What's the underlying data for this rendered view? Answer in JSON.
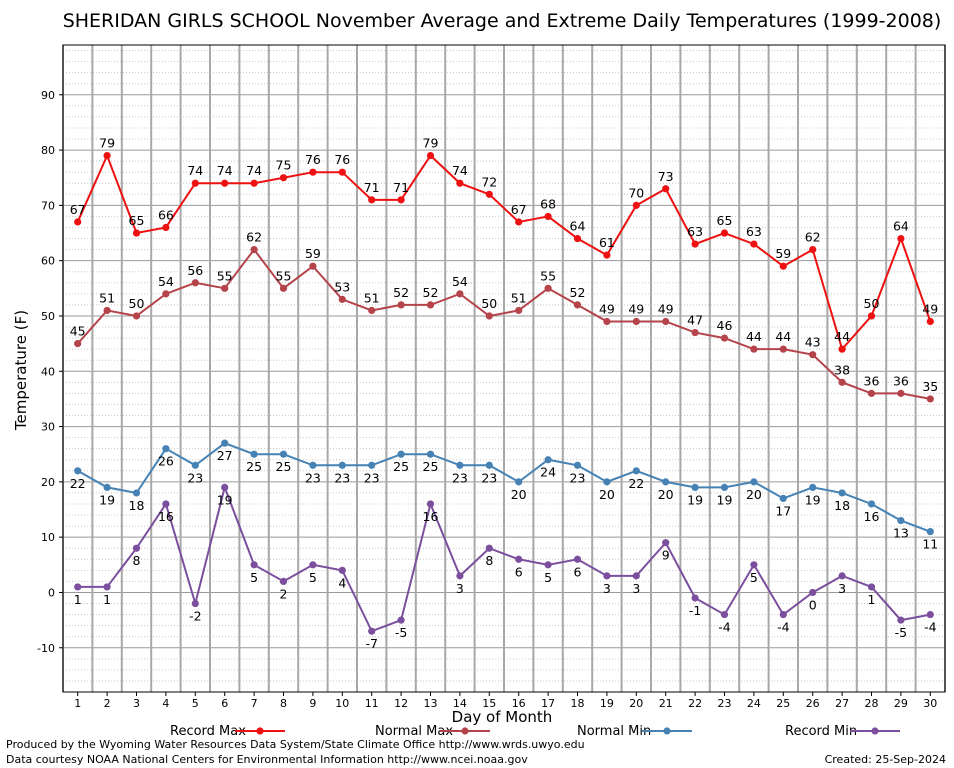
{
  "chart_data": {
    "type": "line",
    "title": "SHERIDAN GIRLS SCHOOL November Average and Extreme Daily Temperatures (1999-2008)",
    "xlabel": "Day of Month",
    "ylabel": "Temperature (F)",
    "x": [
      1,
      2,
      3,
      4,
      5,
      6,
      7,
      8,
      9,
      10,
      11,
      12,
      13,
      14,
      15,
      16,
      17,
      18,
      19,
      20,
      21,
      22,
      23,
      24,
      25,
      26,
      27,
      28,
      29,
      30
    ],
    "xlim": [
      0.5,
      30.5
    ],
    "ylim": [
      -18,
      99
    ],
    "yticks": [
      -10,
      0,
      10,
      20,
      30,
      40,
      50,
      60,
      70,
      80,
      90
    ],
    "grid": true,
    "legend_position": "bottom",
    "series": [
      {
        "name": "Record Max",
        "color": "#ee1111",
        "label_position": "above",
        "values": [
          67,
          79,
          65,
          66,
          74,
          74,
          74,
          75,
          76,
          76,
          71,
          71,
          79,
          74,
          72,
          67,
          68,
          64,
          61,
          70,
          73,
          63,
          65,
          63,
          59,
          62,
          44,
          50,
          64,
          49
        ]
      },
      {
        "name": "Normal Max",
        "color": "#b5434a",
        "label_position": "above",
        "values": [
          45,
          51,
          50,
          54,
          56,
          55,
          62,
          55,
          59,
          53,
          51,
          52,
          52,
          54,
          50,
          51,
          55,
          52,
          49,
          49,
          49,
          47,
          46,
          44,
          44,
          43,
          38,
          36,
          36,
          35
        ]
      },
      {
        "name": "Normal Min",
        "color": "#4682b4",
        "label_position": "below",
        "values": [
          22,
          19,
          18,
          26,
          23,
          27,
          25,
          25,
          23,
          23,
          23,
          25,
          25,
          23,
          23,
          20,
          24,
          23,
          20,
          22,
          20,
          19,
          19,
          20,
          17,
          19,
          18,
          16,
          13,
          11
        ]
      },
      {
        "name": "Record Min",
        "color": "#7b4f9d",
        "label_position": "below",
        "values": [
          1,
          1,
          8,
          16,
          -2,
          19,
          5,
          2,
          5,
          4,
          -7,
          -5,
          16,
          3,
          8,
          6,
          5,
          6,
          3,
          3,
          9,
          -1,
          -4,
          5,
          -4,
          0,
          3,
          1,
          -5,
          -4
        ]
      }
    ]
  },
  "footer": {
    "produced_by": "Produced by the Wyoming Water Resources Data System/State Climate Office http://www.wrds.uwyo.edu",
    "data_courtesy": "Data courtesy NOAA National Centers for Environmental Information http://www.ncei.noaa.gov",
    "created": "Created:  25-Sep-2024"
  }
}
